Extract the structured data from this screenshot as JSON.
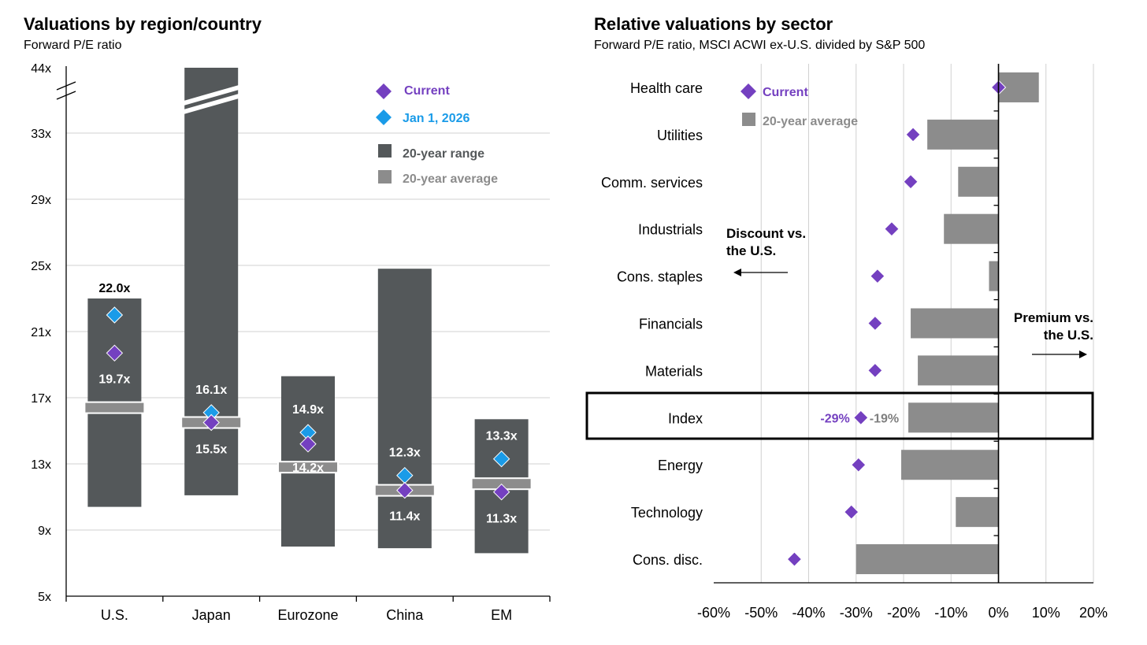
{
  "colors": {
    "range": "#54585a",
    "average": "#8c8c8c",
    "current": "#7440c0",
    "jan": "#1a9be8",
    "grid": "#d0d0d0",
    "label_white": "#ffffff",
    "index_current_label": "#7440c0",
    "index_avg_label": "#7f7f7f"
  },
  "chart_data": [
    {
      "type": "bar",
      "title": "Valuations by region/country",
      "subtitle": "Forward P/E ratio",
      "y_ticks": [
        "5x",
        "9x",
        "13x",
        "17x",
        "21x",
        "25x",
        "29x",
        "33x",
        "44x"
      ],
      "ylim": [
        5,
        44
      ],
      "axis_break": "between 33x and 44x",
      "grid": true,
      "legend": {
        "position": "top-right",
        "current": "Current",
        "jan": "Jan 1, 2026",
        "range": "20-year range",
        "average": "20-year average"
      },
      "categories": [
        "U.S.",
        "Japan",
        "Eurozone",
        "China",
        "EM"
      ],
      "series": [
        {
          "name": "20-year range",
          "low": [
            10.4,
            11.1,
            8.0,
            7.9,
            7.6
          ],
          "high": [
            23.0,
            44,
            18.3,
            24.8,
            15.7
          ],
          "broken": [
            false,
            true,
            false,
            false,
            false
          ]
        },
        {
          "name": "20-year average",
          "values": [
            16.4,
            15.5,
            12.8,
            11.4,
            11.8
          ]
        },
        {
          "name": "Current",
          "values": [
            19.7,
            15.5,
            14.2,
            11.4,
            11.3
          ]
        },
        {
          "name": "Jan 1, 2026",
          "values": [
            22.0,
            16.1,
            14.9,
            12.3,
            13.3
          ]
        }
      ],
      "labels": {
        "current": [
          "19.7x",
          "15.5x",
          "14.2x",
          "11.4x",
          "11.3x"
        ],
        "jan": [
          "22.0x",
          "16.1x",
          "14.9x",
          "12.3x",
          "13.3x"
        ]
      }
    },
    {
      "type": "bar",
      "title": "Relative valuations by sector",
      "subtitle": "Forward P/E ratio, MSCI ACWI ex-U.S. divided by S&P 500",
      "x_ticks": [
        "-60%",
        "-50%",
        "-40%",
        "-30%",
        "-20%",
        "-10%",
        "0%",
        "10%",
        "20%"
      ],
      "xlim": [
        -60,
        20
      ],
      "grid": true,
      "legend": {
        "position": "top-left",
        "current": "Current",
        "average": "20-year average"
      },
      "categories": [
        "Health care",
        "Utilities",
        "Comm. services",
        "Industrials",
        "Cons. staples",
        "Financials",
        "Materials",
        "Index",
        "Energy",
        "Technology",
        "Cons. disc."
      ],
      "series": [
        {
          "name": "20-year average",
          "values": [
            8.5,
            -15,
            -8.5,
            -11.5,
            -2,
            -18.5,
            -17,
            -19,
            -20.5,
            -9,
            -30
          ]
        },
        {
          "name": "Current",
          "values": [
            0,
            -18,
            -18.5,
            -22.5,
            -25.5,
            -26,
            -26,
            -29,
            -29.5,
            -31,
            -43
          ]
        }
      ],
      "highlight": {
        "category": "Index",
        "current_label": "-29%",
        "average_label": "-19%"
      },
      "annotations": {
        "discount_line1": "Discount  vs.",
        "discount_line2": "the U.S.",
        "premium_line1": "Premium vs.",
        "premium_line2": "the U.S."
      }
    }
  ]
}
